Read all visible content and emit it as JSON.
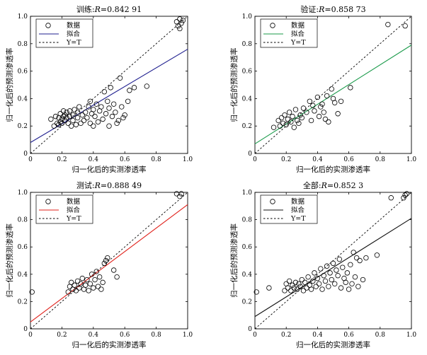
{
  "chart_data": [
    {
      "type": "scatter",
      "title_prefix": "训练:",
      "title_var": "R",
      "title_value": "=0.842 91",
      "xlabel": "归一化后的实测渗透率",
      "ylabel": "归一化后的预测渗透率",
      "xlim": [
        0,
        1.0
      ],
      "ylim": [
        0,
        1.0
      ],
      "xticks": [
        "0",
        "0.2",
        "0.4",
        "0.6",
        "0.8",
        "1.0"
      ],
      "yticks": [
        "0",
        "0.2",
        "0.4",
        "0.6",
        "0.8",
        "1.0"
      ],
      "legend_position": "top-left",
      "fit_color": "#1f1f8f",
      "legend": [
        "数据",
        "拟合",
        "Y=T"
      ],
      "fit_line": {
        "intercept": 0.08,
        "slope": 0.68
      },
      "points": [
        [
          0.13,
          0.25
        ],
        [
          0.15,
          0.2
        ],
        [
          0.16,
          0.27
        ],
        [
          0.17,
          0.22
        ],
        [
          0.18,
          0.21
        ],
        [
          0.18,
          0.26
        ],
        [
          0.19,
          0.23
        ],
        [
          0.19,
          0.29
        ],
        [
          0.2,
          0.25
        ],
        [
          0.2,
          0.22
        ],
        [
          0.21,
          0.27
        ],
        [
          0.21,
          0.31
        ],
        [
          0.22,
          0.24
        ],
        [
          0.22,
          0.28
        ],
        [
          0.23,
          0.26
        ],
        [
          0.23,
          0.3
        ],
        [
          0.24,
          0.22
        ],
        [
          0.25,
          0.27
        ],
        [
          0.25,
          0.31
        ],
        [
          0.26,
          0.2
        ],
        [
          0.27,
          0.24
        ],
        [
          0.27,
          0.28
        ],
        [
          0.28,
          0.32
        ],
        [
          0.29,
          0.21
        ],
        [
          0.3,
          0.26
        ],
        [
          0.3,
          0.3
        ],
        [
          0.31,
          0.34
        ],
        [
          0.32,
          0.22
        ],
        [
          0.33,
          0.28
        ],
        [
          0.34,
          0.24
        ],
        [
          0.35,
          0.3
        ],
        [
          0.36,
          0.26
        ],
        [
          0.37,
          0.34
        ],
        [
          0.38,
          0.22
        ],
        [
          0.38,
          0.38
        ],
        [
          0.39,
          0.29
        ],
        [
          0.4,
          0.32
        ],
        [
          0.4,
          0.2
        ],
        [
          0.41,
          0.27
        ],
        [
          0.42,
          0.36
        ],
        [
          0.43,
          0.23
        ],
        [
          0.44,
          0.31
        ],
        [
          0.45,
          0.34
        ],
        [
          0.46,
          0.25
        ],
        [
          0.47,
          0.45
        ],
        [
          0.48,
          0.29
        ],
        [
          0.49,
          0.38
        ],
        [
          0.5,
          0.2
        ],
        [
          0.5,
          0.33
        ],
        [
          0.51,
          0.48
        ],
        [
          0.52,
          0.27
        ],
        [
          0.53,
          0.36
        ],
        [
          0.54,
          0.3
        ],
        [
          0.55,
          0.22
        ],
        [
          0.56,
          0.24
        ],
        [
          0.57,
          0.55
        ],
        [
          0.58,
          0.34
        ],
        [
          0.59,
          0.26
        ],
        [
          0.6,
          0.28
        ],
        [
          0.62,
          0.38
        ],
        [
          0.63,
          0.46
        ],
        [
          0.66,
          0.48
        ],
        [
          0.74,
          0.49
        ],
        [
          0.93,
          0.96
        ],
        [
          0.94,
          0.93
        ],
        [
          0.95,
          0.98
        ],
        [
          0.96,
          0.95
        ],
        [
          0.97,
          0.97
        ],
        [
          0.95,
          0.91
        ]
      ]
    },
    {
      "type": "scatter",
      "title_prefix": "验证:",
      "title_var": "R",
      "title_value": "=0.858 73",
      "xlabel": "归一化后的实测渗透率",
      "ylabel": "归一化后的预测渗透率",
      "xlim": [
        0,
        1.0
      ],
      "ylim": [
        0,
        1.0
      ],
      "xticks": [
        "0",
        "0.2",
        "0.4",
        "0.6",
        "0.8",
        "1.0"
      ],
      "yticks": [
        "0",
        "0.2",
        "0.4",
        "0.6",
        "0.8",
        "1.0"
      ],
      "legend_position": "top-left",
      "fit_color": "#1a9a4a",
      "legend": [
        "数据",
        "拟合",
        "Y=T"
      ],
      "fit_line": {
        "intercept": 0.07,
        "slope": 0.72
      },
      "points": [
        [
          0.12,
          0.19
        ],
        [
          0.15,
          0.24
        ],
        [
          0.16,
          0.2
        ],
        [
          0.17,
          0.26
        ],
        [
          0.18,
          0.22
        ],
        [
          0.19,
          0.28
        ],
        [
          0.2,
          0.21
        ],
        [
          0.21,
          0.25
        ],
        [
          0.22,
          0.3
        ],
        [
          0.23,
          0.23
        ],
        [
          0.24,
          0.27
        ],
        [
          0.25,
          0.19
        ],
        [
          0.26,
          0.32
        ],
        [
          0.27,
          0.24
        ],
        [
          0.28,
          0.22
        ],
        [
          0.29,
          0.28
        ],
        [
          0.3,
          0.26
        ],
        [
          0.31,
          0.33
        ],
        [
          0.33,
          0.3
        ],
        [
          0.35,
          0.38
        ],
        [
          0.36,
          0.24
        ],
        [
          0.37,
          0.35
        ],
        [
          0.38,
          0.31
        ],
        [
          0.4,
          0.41
        ],
        [
          0.41,
          0.27
        ],
        [
          0.42,
          0.34
        ],
        [
          0.43,
          0.36
        ],
        [
          0.44,
          0.3
        ],
        [
          0.45,
          0.25
        ],
        [
          0.46,
          0.42
        ],
        [
          0.47,
          0.23
        ],
        [
          0.49,
          0.47
        ],
        [
          0.5,
          0.4
        ],
        [
          0.51,
          0.37
        ],
        [
          0.53,
          0.29
        ],
        [
          0.55,
          0.38
        ],
        [
          0.61,
          0.48
        ],
        [
          0.85,
          0.94
        ],
        [
          0.96,
          0.93
        ]
      ]
    },
    {
      "type": "scatter",
      "title_prefix": "测试:",
      "title_var": "R",
      "title_value": "=0.888 49",
      "xlabel": "归一化后的实测渗透率",
      "ylabel": "归一化后的预测渗透率",
      "xlim": [
        0,
        1.0
      ],
      "ylim": [
        0,
        1.0
      ],
      "xticks": [
        "0",
        "0.2",
        "0.4",
        "0.6",
        "0.8",
        "1.0"
      ],
      "yticks": [
        "0",
        "0.2",
        "0.4",
        "0.6",
        "0.8",
        "1.0"
      ],
      "legend_position": "top-left",
      "fit_color": "#e0201a",
      "legend": [
        "数据",
        "拟合",
        "Y=T"
      ],
      "fit_line": {
        "intercept": 0.05,
        "slope": 0.86
      },
      "points": [
        [
          0.01,
          0.27
        ],
        [
          0.24,
          0.27
        ],
        [
          0.25,
          0.31
        ],
        [
          0.26,
          0.34
        ],
        [
          0.27,
          0.29
        ],
        [
          0.28,
          0.32
        ],
        [
          0.29,
          0.28
        ],
        [
          0.3,
          0.35
        ],
        [
          0.31,
          0.3
        ],
        [
          0.32,
          0.33
        ],
        [
          0.33,
          0.37
        ],
        [
          0.34,
          0.29
        ],
        [
          0.35,
          0.32
        ],
        [
          0.36,
          0.36
        ],
        [
          0.37,
          0.28
        ],
        [
          0.38,
          0.33
        ],
        [
          0.39,
          0.4
        ],
        [
          0.4,
          0.3
        ],
        [
          0.41,
          0.36
        ],
        [
          0.42,
          0.42
        ],
        [
          0.43,
          0.31
        ],
        [
          0.44,
          0.38
        ],
        [
          0.45,
          0.29
        ],
        [
          0.46,
          0.34
        ],
        [
          0.47,
          0.48
        ],
        [
          0.48,
          0.5
        ],
        [
          0.49,
          0.52
        ],
        [
          0.53,
          0.43
        ],
        [
          0.55,
          0.38
        ],
        [
          0.93,
          0.99
        ],
        [
          0.95,
          0.97
        ],
        [
          0.96,
          0.99
        ]
      ]
    },
    {
      "type": "scatter",
      "title_prefix": "全部:",
      "title_var": "R",
      "title_value": "=0.852 3",
      "xlabel": "归一化后的实测渗透率",
      "ylabel": "归一化后的预测渗透率",
      "xlim": [
        0,
        1.0
      ],
      "ylim": [
        0,
        1.0
      ],
      "xticks": [
        "0",
        "0.2",
        "0.4",
        "0.6",
        "0.8",
        "1.0"
      ],
      "yticks": [
        "0",
        "0.2",
        "0.4",
        "0.6",
        "0.8",
        "1.0"
      ],
      "legend_position": "top-left",
      "fit_color": "#111111",
      "legend": [
        "数据",
        "拟合",
        "Y=T"
      ],
      "fit_line": {
        "intercept": 0.09,
        "slope": 0.72
      },
      "points": [
        [
          0.01,
          0.27
        ],
        [
          0.09,
          0.3
        ],
        [
          0.19,
          0.28
        ],
        [
          0.2,
          0.33
        ],
        [
          0.21,
          0.3
        ],
        [
          0.22,
          0.35
        ],
        [
          0.23,
          0.28
        ],
        [
          0.24,
          0.32
        ],
        [
          0.25,
          0.3
        ],
        [
          0.26,
          0.34
        ],
        [
          0.27,
          0.29
        ],
        [
          0.28,
          0.33
        ],
        [
          0.29,
          0.31
        ],
        [
          0.3,
          0.36
        ],
        [
          0.31,
          0.28
        ],
        [
          0.32,
          0.34
        ],
        [
          0.33,
          0.3
        ],
        [
          0.34,
          0.38
        ],
        [
          0.35,
          0.32
        ],
        [
          0.36,
          0.29
        ],
        [
          0.37,
          0.35
        ],
        [
          0.38,
          0.41
        ],
        [
          0.39,
          0.31
        ],
        [
          0.4,
          0.37
        ],
        [
          0.41,
          0.33
        ],
        [
          0.42,
          0.44
        ],
        [
          0.43,
          0.29
        ],
        [
          0.44,
          0.39
        ],
        [
          0.45,
          0.35
        ],
        [
          0.46,
          0.46
        ],
        [
          0.47,
          0.31
        ],
        [
          0.48,
          0.41
        ],
        [
          0.49,
          0.36
        ],
        [
          0.5,
          0.48
        ],
        [
          0.51,
          0.33
        ],
        [
          0.52,
          0.43
        ],
        [
          0.53,
          0.39
        ],
        [
          0.54,
          0.51
        ],
        [
          0.55,
          0.3
        ],
        [
          0.56,
          0.45
        ],
        [
          0.57,
          0.37
        ],
        [
          0.58,
          0.34
        ],
        [
          0.59,
          0.41
        ],
        [
          0.6,
          0.29
        ],
        [
          0.61,
          0.47
        ],
        [
          0.62,
          0.33
        ],
        [
          0.63,
          0.56
        ],
        [
          0.64,
          0.38
        ],
        [
          0.65,
          0.52
        ],
        [
          0.66,
          0.31
        ],
        [
          0.67,
          0.5
        ],
        [
          0.69,
          0.36
        ],
        [
          0.71,
          0.52
        ],
        [
          0.78,
          0.54
        ],
        [
          0.87,
          0.96
        ],
        [
          0.95,
          0.96
        ],
        [
          0.96,
          0.98
        ],
        [
          0.97,
          0.99
        ]
      ]
    }
  ]
}
